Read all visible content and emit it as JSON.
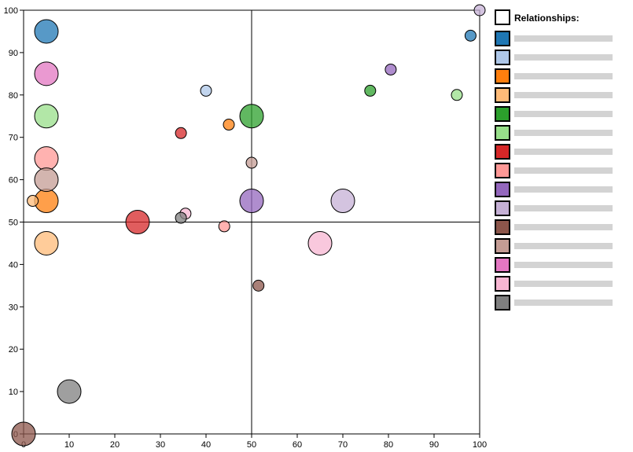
{
  "chart_data": {
    "type": "bubble",
    "legend_title": "Relationships:",
    "legend": "right",
    "xlim": [
      0,
      100
    ],
    "ylim": [
      0,
      100
    ],
    "xticks": [
      0,
      10,
      20,
      30,
      40,
      50,
      60,
      70,
      80,
      90,
      100
    ],
    "yticks": [
      0,
      10,
      20,
      30,
      40,
      50,
      60,
      70,
      80,
      90,
      100
    ],
    "quadrant_lines": {
      "x": 50,
      "y": 50
    },
    "series": [
      {
        "color": "#1f77b4",
        "x": [
          5,
          98
        ],
        "values": [
          95,
          94
        ],
        "sizes": [
          15,
          7
        ]
      },
      {
        "color": "#aec7e8",
        "x": [
          40
        ],
        "values": [
          81
        ],
        "sizes": [
          7
        ]
      },
      {
        "color": "#ff7f0e",
        "x": [
          5,
          45
        ],
        "values": [
          55,
          73
        ],
        "sizes": [
          15,
          7
        ]
      },
      {
        "color": "#ffbb78",
        "x": [
          5,
          2
        ],
        "values": [
          45,
          55
        ],
        "sizes": [
          15,
          7
        ]
      },
      {
        "color": "#2ca02c",
        "x": [
          50,
          76
        ],
        "values": [
          75,
          81
        ],
        "sizes": [
          15,
          7
        ]
      },
      {
        "color": "#98df8a",
        "x": [
          5,
          95
        ],
        "values": [
          75,
          80
        ],
        "sizes": [
          15,
          7
        ]
      },
      {
        "color": "#d62728",
        "x": [
          25,
          34.5
        ],
        "values": [
          50,
          71
        ],
        "sizes": [
          15,
          7
        ]
      },
      {
        "color": "#ff9896",
        "x": [
          5,
          44
        ],
        "values": [
          65,
          49
        ],
        "sizes": [
          15,
          7
        ]
      },
      {
        "color": "#9467bd",
        "x": [
          50,
          80.5
        ],
        "values": [
          55,
          86
        ],
        "sizes": [
          15,
          7
        ]
      },
      {
        "color": "#c5b0d5",
        "x": [
          70,
          100
        ],
        "values": [
          55,
          100
        ],
        "sizes": [
          15,
          7
        ]
      },
      {
        "color": "#8c564b",
        "x": [
          0,
          51.5
        ],
        "values": [
          0,
          35
        ],
        "sizes": [
          15,
          7
        ]
      },
      {
        "color": "#c49c94",
        "x": [
          5,
          50
        ],
        "values": [
          60,
          64
        ],
        "sizes": [
          15,
          7
        ]
      },
      {
        "color": "#e377c2",
        "x": [
          5
        ],
        "values": [
          85
        ],
        "sizes": [
          15
        ]
      },
      {
        "color": "#f7b6d2",
        "x": [
          65,
          35.5
        ],
        "values": [
          45,
          52
        ],
        "sizes": [
          15,
          7
        ]
      },
      {
        "color": "#7f7f7f",
        "x": [
          10,
          34.5
        ],
        "values": [
          10,
          51
        ],
        "sizes": [
          15,
          7
        ]
      }
    ]
  }
}
